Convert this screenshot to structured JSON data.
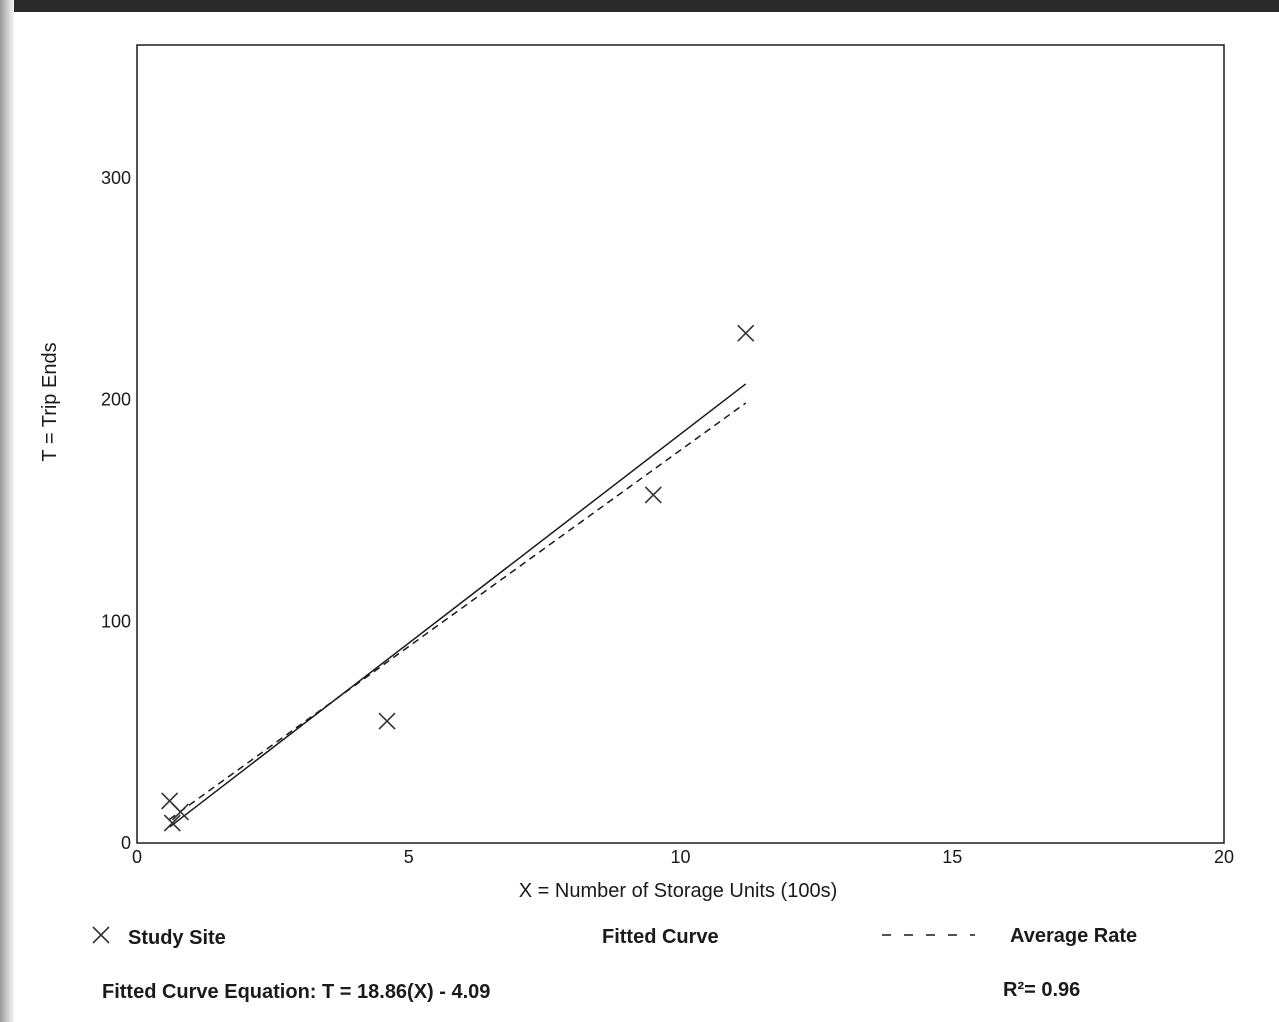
{
  "chart_data": {
    "type": "scatter",
    "xlabel": "X = Number of Storage Units (100s)",
    "ylabel": "T = Trip Ends",
    "xlim": [
      0,
      20
    ],
    "ylim": [
      0,
      360
    ],
    "x_ticks": [
      0,
      5,
      10,
      15,
      20
    ],
    "y_ticks": [
      0,
      100,
      200,
      300
    ],
    "grid": false,
    "series": [
      {
        "name": "Study Site",
        "marker": "x",
        "points": [
          {
            "x": 0.6,
            "y": 19
          },
          {
            "x": 0.65,
            "y": 9
          },
          {
            "x": 0.8,
            "y": 14
          },
          {
            "x": 4.6,
            "y": 55
          },
          {
            "x": 9.5,
            "y": 157
          },
          {
            "x": 11.2,
            "y": 230
          }
        ]
      },
      {
        "name": "Fitted Curve",
        "style": "solid",
        "points": [
          {
            "x": 0.6,
            "y": 7.2
          },
          {
            "x": 11.2,
            "y": 207.1
          }
        ]
      },
      {
        "name": "Average Rate",
        "style": "dashed",
        "points": [
          {
            "x": 0.6,
            "y": 10.7
          },
          {
            "x": 11.2,
            "y": 198.5
          }
        ]
      }
    ],
    "legend": {
      "placement": "bottom",
      "entries": [
        "Study Site",
        "Fitted Curve",
        "Average Rate"
      ]
    },
    "equation": "Fitted Curve Equation: T = 18.86(X) - 4.09",
    "r_squared": "R²= 0.96"
  },
  "colors": {
    "line": "#1a1a1a",
    "marker": "#333333",
    "page_edge": "#2a2a2a"
  }
}
